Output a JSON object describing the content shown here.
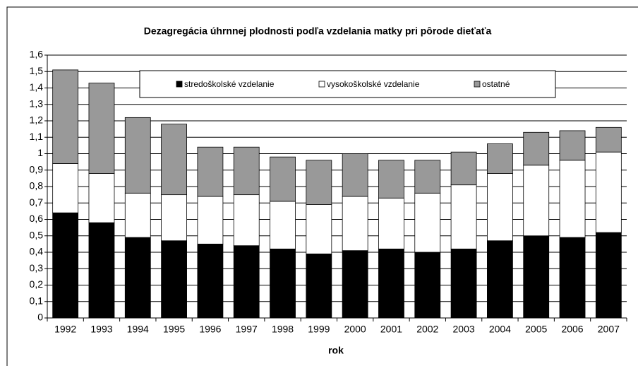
{
  "chart_data": {
    "type": "stacked-bar",
    "title": "Dezagregácia úhrnnej plodnosti podľa vzdelania matky pri pôrode dieťaťa",
    "x_label": "rok",
    "categories": [
      "1992",
      "1993",
      "1994",
      "1995",
      "1996",
      "1997",
      "1998",
      "1999",
      "2000",
      "2001",
      "2002",
      "2003",
      "2004",
      "2005",
      "2006",
      "2007"
    ],
    "series": [
      {
        "name": "stredoškolské vzdelanie",
        "color": "#000000",
        "values": [
          0.64,
          0.58,
          0.49,
          0.47,
          0.45,
          0.44,
          0.42,
          0.39,
          0.41,
          0.42,
          0.4,
          0.42,
          0.47,
          0.5,
          0.49,
          0.52
        ]
      },
      {
        "name": "vysokoškolské vzdelanie",
        "color": "#ffffff",
        "values": [
          0.3,
          0.3,
          0.27,
          0.28,
          0.29,
          0.31,
          0.29,
          0.3,
          0.33,
          0.31,
          0.36,
          0.39,
          0.41,
          0.43,
          0.47,
          0.49
        ]
      },
      {
        "name": "ostatné",
        "color": "#999999",
        "values": [
          0.57,
          0.55,
          0.46,
          0.43,
          0.3,
          0.29,
          0.27,
          0.27,
          0.26,
          0.23,
          0.2,
          0.2,
          0.18,
          0.2,
          0.18,
          0.15
        ]
      }
    ],
    "ylim": [
      0,
      1.6
    ],
    "yticks": [
      0,
      {
        "value": 0.1,
        "label": "0,1"
      },
      {
        "value": 0.2,
        "label": "0,2"
      },
      {
        "value": 0.3,
        "label": "0,3"
      },
      {
        "value": 0.4,
        "label": "0,4"
      },
      {
        "value": 0.5,
        "label": "0,5"
      },
      {
        "value": 0.6,
        "label": "0,6"
      },
      {
        "value": 0.7,
        "label": "0,7"
      },
      {
        "value": 0.8,
        "label": "0,8"
      },
      {
        "value": 0.9,
        "label": "0,9"
      },
      1,
      {
        "value": 1.1,
        "label": "1,1"
      },
      {
        "value": 1.2,
        "label": "1,2"
      },
      {
        "value": 1.3,
        "label": "1,3"
      },
      {
        "value": 1.4,
        "label": "1,4"
      },
      {
        "value": 1.5,
        "label": "1,5"
      },
      {
        "value": 1.6,
        "label": "1,6"
      }
    ],
    "grid": true,
    "legend": "top"
  }
}
